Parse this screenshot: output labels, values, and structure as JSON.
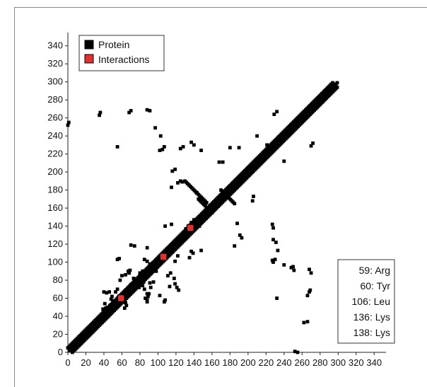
{
  "chart_data": {
    "type": "scatter",
    "title": "",
    "xlabel": "",
    "ylabel": "",
    "xlim": [
      0,
      350
    ],
    "ylim": [
      0,
      350
    ],
    "xticks": [
      0,
      20,
      40,
      60,
      80,
      100,
      120,
      140,
      160,
      180,
      200,
      220,
      240,
      260,
      280,
      300,
      320,
      340
    ],
    "yticks": [
      0,
      20,
      40,
      60,
      80,
      100,
      120,
      140,
      160,
      180,
      200,
      220,
      240,
      260,
      280,
      300,
      320,
      340
    ],
    "grid": false,
    "legend_position": "top-left",
    "legend": [
      {
        "label": "Protein",
        "color": "#000000"
      },
      {
        "label": "Interactions",
        "color": "#e03030"
      }
    ],
    "series": [
      {
        "name": "Protein",
        "color": "#000000",
        "segments": [
          {
            "from": [
              2,
              2
            ],
            "to": [
              300,
              300
            ]
          },
          {
            "from": [
              5,
              0
            ],
            "to": [
              300,
              295
            ]
          },
          {
            "from": [
              0,
              5
            ],
            "to": [
              295,
              300
            ]
          },
          {
            "from": [
              130,
              190
            ],
            "to": [
              155,
              165
            ]
          },
          {
            "from": [
              170,
              180
            ],
            "to": [
              185,
              165
            ]
          },
          {
            "from": [
              145,
              170
            ],
            "to": [
              160,
              155
            ]
          }
        ],
        "points": [
          [
            0,
            252
          ],
          [
            1,
            255
          ],
          [
            35,
            263
          ],
          [
            36,
            266
          ],
          [
            55,
            228
          ],
          [
            68,
            266
          ],
          [
            70,
            268
          ],
          [
            88,
            269
          ],
          [
            91,
            268
          ],
          [
            97,
            249
          ],
          [
            103,
            240
          ],
          [
            102,
            224
          ],
          [
            105,
            225
          ],
          [
            107,
            228
          ],
          [
            125,
            226
          ],
          [
            128,
            228
          ],
          [
            137,
            233
          ],
          [
            140,
            230
          ],
          [
            148,
            224
          ],
          [
            116,
            201
          ],
          [
            119,
            203
          ],
          [
            122,
            188
          ],
          [
            125,
            190
          ],
          [
            127,
            189
          ],
          [
            143,
            177
          ],
          [
            168,
            211
          ],
          [
            172,
            211
          ],
          [
            180,
            227
          ],
          [
            190,
            227
          ],
          [
            210,
            240
          ],
          [
            221,
            230
          ],
          [
            226,
            223
          ],
          [
            230,
            234
          ],
          [
            240,
            212
          ],
          [
            229,
            264
          ],
          [
            232,
            267
          ],
          [
            270,
            229
          ],
          [
            272,
            232
          ],
          [
            115,
            183
          ],
          [
            108,
            140
          ],
          [
            115,
            142
          ],
          [
            137,
            144
          ],
          [
            140,
            147
          ],
          [
            143,
            143
          ],
          [
            146,
            140
          ],
          [
            135,
            105
          ],
          [
            148,
            113
          ],
          [
            131,
            137
          ],
          [
            188,
            143
          ],
          [
            191,
            130
          ],
          [
            193,
            127
          ],
          [
            185,
            118
          ],
          [
            205,
            168
          ],
          [
            206,
            173
          ],
          [
            227,
            142
          ],
          [
            228,
            138
          ],
          [
            228,
            125
          ],
          [
            231,
            122
          ],
          [
            233,
            113
          ],
          [
            227,
            102
          ],
          [
            228,
            100
          ],
          [
            230,
            103
          ],
          [
            240,
            97
          ],
          [
            251,
            91
          ],
          [
            268,
            92
          ],
          [
            270,
            88
          ],
          [
            248,
            94
          ],
          [
            250,
            95
          ],
          [
            266,
            63
          ],
          [
            268,
            67
          ],
          [
            269,
            69
          ],
          [
            232,
            60
          ],
          [
            262,
            33
          ],
          [
            266,
            34
          ],
          [
            252,
            1
          ],
          [
            255,
            0
          ],
          [
            55,
            103
          ],
          [
            57,
            104
          ],
          [
            64,
            86
          ],
          [
            68,
            88
          ],
          [
            70,
            75
          ],
          [
            73,
            82
          ],
          [
            70,
            69
          ],
          [
            74,
            73
          ],
          [
            67,
            90
          ],
          [
            69,
            91
          ],
          [
            70,
            119
          ],
          [
            74,
            118
          ],
          [
            88,
            116
          ],
          [
            85,
            103
          ],
          [
            88,
            101
          ],
          [
            91,
            98
          ],
          [
            92,
            94
          ],
          [
            95,
            92
          ],
          [
            98,
            90
          ],
          [
            95,
            78
          ],
          [
            91,
            77
          ],
          [
            85,
            70
          ],
          [
            88,
            65
          ],
          [
            89,
            62
          ],
          [
            88,
            58
          ],
          [
            86,
            60
          ],
          [
            84,
            78
          ],
          [
            83,
            74
          ],
          [
            79,
            72
          ],
          [
            78,
            80
          ],
          [
            82,
            83
          ],
          [
            80,
            88
          ],
          [
            83,
            90
          ],
          [
            85,
            85
          ],
          [
            92,
            72
          ],
          [
            90,
            65
          ],
          [
            88,
            56
          ],
          [
            108,
            58
          ],
          [
            107,
            56
          ],
          [
            102,
            63
          ],
          [
            58,
            80
          ],
          [
            60,
            85
          ],
          [
            55,
            70
          ],
          [
            53,
            67
          ],
          [
            50,
            57
          ],
          [
            48,
            59
          ],
          [
            47,
            52
          ],
          [
            44,
            50
          ],
          [
            43,
            66
          ],
          [
            46,
            67
          ],
          [
            40,
            67
          ],
          [
            42,
            49
          ],
          [
            45,
            46
          ],
          [
            39,
            48
          ],
          [
            41,
            54
          ],
          [
            49,
            62
          ],
          [
            62,
            62
          ],
          [
            64,
            63
          ],
          [
            64,
            55
          ],
          [
            65,
            52
          ],
          [
            63,
            49
          ],
          [
            118,
            82
          ],
          [
            119,
            76
          ],
          [
            121,
            72
          ],
          [
            123,
            69
          ],
          [
            113,
            73
          ],
          [
            111,
            85
          ],
          [
            114,
            88
          ],
          [
            119,
            101
          ],
          [
            122,
            107
          ],
          [
            139,
            110
          ],
          [
            137,
            112
          ],
          [
            126,
            125
          ],
          [
            128,
            128
          ],
          [
            129,
            131
          ],
          [
            131,
            126
          ]
        ]
      },
      {
        "name": "Interactions",
        "color": "#e03030",
        "points": [
          [
            59,
            60
          ],
          [
            106,
            106
          ],
          [
            136,
            138
          ]
        ]
      }
    ],
    "annotations": [
      "59: Arg",
      "60: Tyr",
      "106: Leu",
      "136: Lys",
      "138: Lys"
    ]
  }
}
